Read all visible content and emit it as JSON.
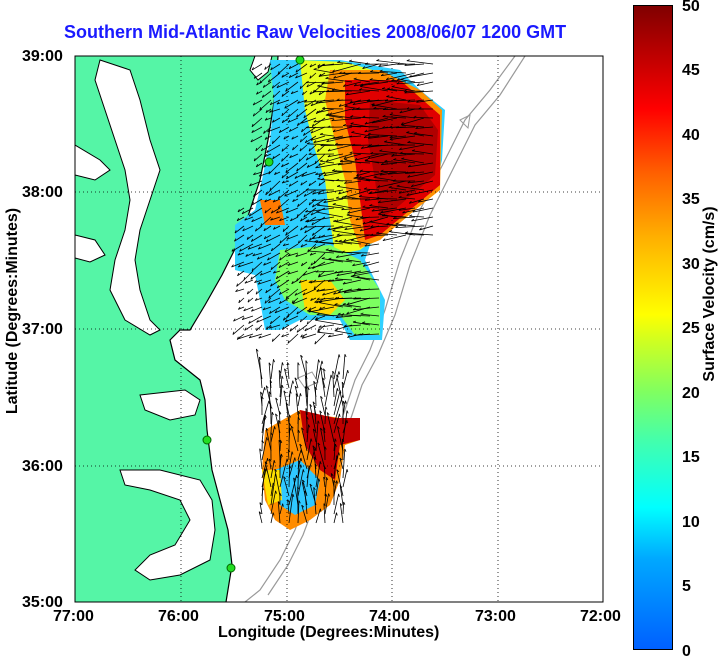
{
  "title": "Southern Mid-Atlantic Raw Velocities 2008/06/07 1200 GMT",
  "xlabel": "Longitude (Degrees:Minutes)",
  "ylabel": "Latitude (Degrees:Minutes)",
  "x_ticks": [
    "77:00",
    "76:00",
    "75:00",
    "74:00",
    "73:00",
    "72:00"
  ],
  "y_ticks": [
    "39:00",
    "38:00",
    "37:00",
    "36:00",
    "35:00"
  ],
  "colorbar": {
    "label": "Surface Velocity (cm/s)",
    "ticks": [
      "50",
      "45",
      "40",
      "35",
      "30",
      "25",
      "20",
      "15",
      "10",
      "5",
      "0"
    ],
    "range": [
      0,
      50
    ]
  },
  "colors": {
    "land": "#55f5a6",
    "title": "#1a1aff",
    "coastline": "#000000",
    "bathymetry": "#999999"
  },
  "stations": [
    "station-1",
    "station-2",
    "station-3",
    "station-4"
  ]
}
